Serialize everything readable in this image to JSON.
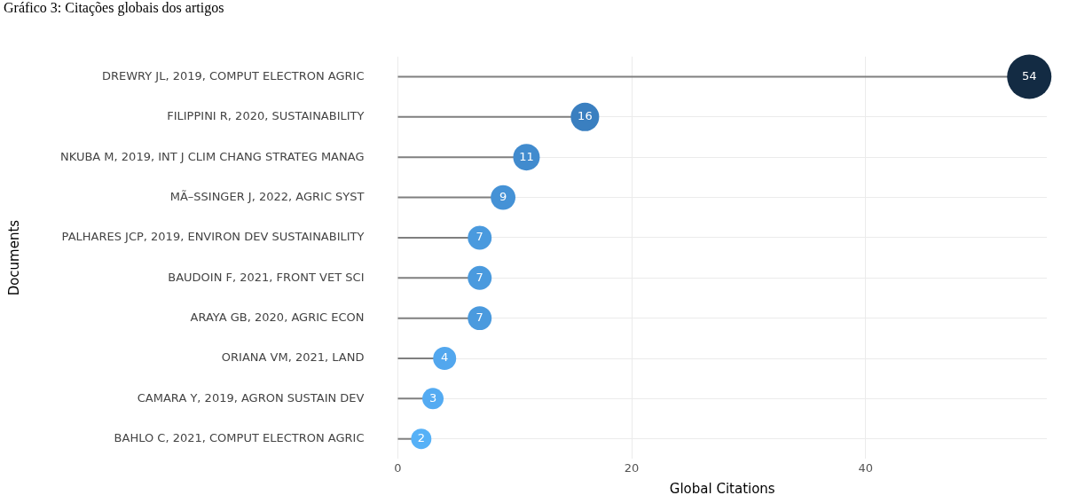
{
  "chart_data": {
    "type": "lollipop",
    "orientation": "horizontal",
    "title": "Gráfico 3: Citações globais dos artigos",
    "xlabel": "Global Citations",
    "ylabel": "Documents",
    "categories": [
      "DREWRY JL, 2019, COMPUT ELECTRON AGRIC",
      "FILIPPINI R, 2020, SUSTAINABILITY",
      "NKUBA M, 2019, INT J CLIM CHANG STRATEG MANAG",
      "MÃ–SSINGER J, 2022, AGRIC SYST",
      "PALHARES JCP, 2019, ENVIRON DEV SUSTAINABILITY",
      "BAUDOIN F, 2021, FRONT VET SCI",
      "ARAYA GB, 2020, AGRIC ECON",
      "ORIANA VM, 2021, LAND",
      "CAMARA Y, 2019, AGRON SUSTAIN DEV",
      "BAHLO C, 2021, COMPUT ELECTRON AGRIC"
    ],
    "values": [
      54,
      16,
      11,
      9,
      7,
      7,
      7,
      4,
      3,
      2
    ],
    "sizes": [
      1,
      0.41,
      0.36,
      0.31,
      0.29,
      0.29,
      0.29,
      0.27,
      0.23,
      0.21
    ],
    "colors": [
      "#132b43",
      "#3a7fc0",
      "#418bce",
      "#4592d6",
      "#4a9ade",
      "#4a9ade",
      "#4a9ade",
      "#52a7ee",
      "#54abf2",
      "#56b1f7"
    ],
    "xlim": [
      0,
      55.5
    ],
    "xticks": [
      0,
      20,
      40
    ],
    "grid": true,
    "data_labels": true,
    "legend": false
  }
}
